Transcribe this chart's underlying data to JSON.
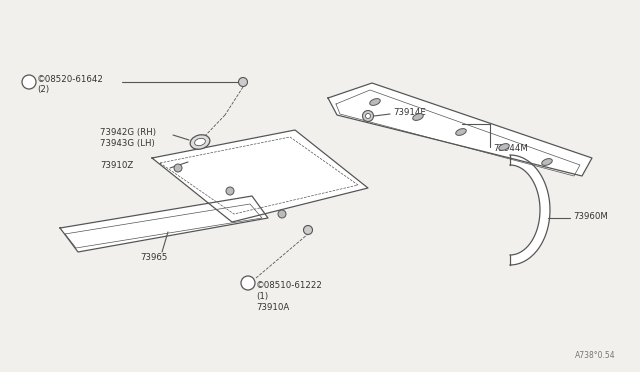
{
  "bg_color": "#f2f0ec",
  "line_color": "#555555",
  "text_color": "#333333",
  "watermark": "A738°0.54",
  "labels": {
    "screw1": "©08520-61642",
    "screw1b": "(2)",
    "part1": "73942G (RH)",
    "part1b": "73943G (LH)",
    "part2": "73910Z",
    "part3": "73965",
    "screw2": "©08510-61222",
    "screw2b": "(1)",
    "part4": "73910A",
    "part5": "73914E",
    "part6": "73944M",
    "part7": "73960M"
  }
}
